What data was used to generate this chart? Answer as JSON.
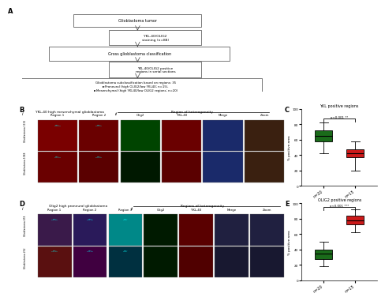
{
  "title_C": "YKL positive regions",
  "title_E": "OLIG2 positive regions",
  "ylabel_C": "% positive area",
  "ylabel_E": "% positive area",
  "xlabels_C": [
    "n=20",
    "n=15"
  ],
  "xlabels_E": [
    "n=20",
    "n=15"
  ],
  "pvalue_C": "p<0.001 **",
  "pvalue_E": "p<0.001 ***",
  "box_C_left": {
    "median": 65,
    "q1": 58,
    "q3": 72,
    "whislo": 42,
    "whishi": 82,
    "color": "#1a6b1a"
  },
  "box_C_right": {
    "median": 42,
    "q1": 37,
    "q3": 47,
    "whislo": 20,
    "whishi": 58,
    "color": "#cc1a1a"
  },
  "box_E_left": {
    "median": 35,
    "q1": 28,
    "q3": 40,
    "whislo": 18,
    "whishi": 50,
    "color": "#1a6b1a"
  },
  "box_E_right": {
    "median": 78,
    "q1": 73,
    "q3": 84,
    "whislo": 62,
    "whishi": 92,
    "color": "#cc1a1a"
  },
  "ylim_C": [
    0,
    100
  ],
  "ylim_E": [
    0,
    100
  ],
  "panel_B_title": "YKL-40 high mesenchymal glioblastoma",
  "panel_B_subtitle": "Region of heterogeneity",
  "panel_D_title": "Olig2 high proneural glioblastoma",
  "panel_D_subtitle": "Regions of heterogeneity",
  "col_labels_B_i": [
    "Region 1",
    "Region 2"
  ],
  "col_labels_B_ii": [
    "Olig2",
    "YKL-40",
    "Merge",
    "Zoom"
  ],
  "col_labels_D_i": [
    "Region 1",
    "Region 2",
    "Region 3"
  ],
  "col_labels_D_ii": [
    "Olig2",
    "YKL-40",
    "Merge",
    "Zoom"
  ],
  "row_labels_B": [
    "Glioblastoma 1132",
    "Glioblastoma 1048"
  ],
  "row_labels_D": [
    "Glioblastoma 474",
    "Glioblastoma 252"
  ],
  "colors_B_top": [
    "#7a0000",
    "#6a0000",
    "#004400",
    "#6a0000",
    "#1a2a6a",
    "#3a2010"
  ],
  "colors_B_bot": [
    "#6a0000",
    "#5a0000",
    "#001800",
    "#5a0000",
    "#1a2a6a",
    "#3a2010"
  ],
  "colors_D_top_r1": [
    "#3a1a4a",
    "#2a1a5a",
    "#008888",
    "#001a00",
    "#5a0000",
    "#202040"
  ],
  "colors_D_top_r2": [
    "#5a0000",
    "#3a1060",
    "#006060",
    "#001a00",
    "#5a0000",
    "#202040"
  ],
  "colors_D_bot_r1": [
    "#5a1010",
    "#400040",
    "#003040",
    "#001a00",
    "#500000",
    "#181830"
  ],
  "colors_D_bot_r2": [
    "#5a1010",
    "#380038",
    "#002838",
    "#001a00",
    "#500000",
    "#181830"
  ],
  "bg_color": "#ffffff",
  "flowchart_box1": "Glioblastoma tumor",
  "flowchart_box2": "YKL-40/OLIG2\nstaining (n=88)",
  "flowchart_box3": "Gross glioblastoma classification",
  "flowchart_box4": "YKL-40/OLIG2 positive\nregions in serial sections",
  "flowchart_box5": "Glioblastoma subclassification based on regions: 35\n►Proneural (high OLIG2/low YKL40; n=15),\n►Mesenchymal (high YKL40/low OLIG2 regions; n=20)"
}
